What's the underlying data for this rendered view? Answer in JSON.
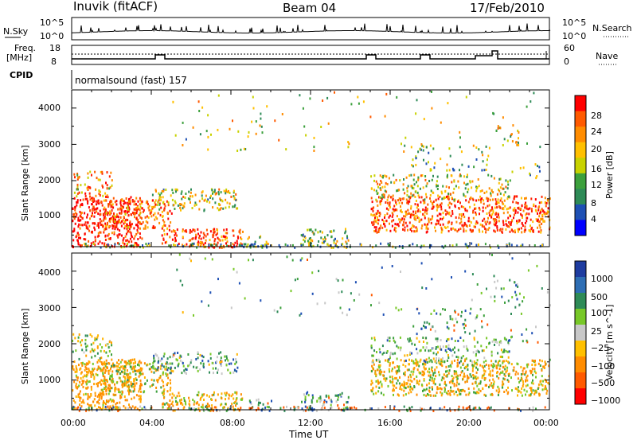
{
  "header": {
    "station": "Inuvik (fitACF)",
    "beam": "Beam 04",
    "date": "17/Feb/2010",
    "cpid_label": "CPID",
    "program": "normalsound (fast) 157"
  },
  "top_panels": {
    "nsky_label": "N.Sky",
    "nsky_ticks": [
      "10^5",
      "10^0"
    ],
    "nsearch_label": "N.Search",
    "nsearch_ticks": [
      "10^5",
      "10^0"
    ],
    "freq_label_line1": "Freq.",
    "freq_label_line2": "[MHz]",
    "freq_ticks": [
      "18",
      "8"
    ],
    "nave_label": "Nave",
    "nave_ticks": [
      "60",
      "0"
    ]
  },
  "chart_data": [
    {
      "type": "heatmap",
      "name": "power",
      "ylabel": "Slant Range [km]",
      "xlabel": "Time UT",
      "x_ticks": [
        "00:00",
        "04:00",
        "08:00",
        "12:00",
        "16:00",
        "20:00",
        "00:00"
      ],
      "xlim_hours": [
        0,
        24
      ],
      "y_ticks": [
        "1000",
        "2000",
        "3000",
        "4000"
      ],
      "ylim": [
        180,
        4500
      ],
      "colorbar_label": "Power [dB]",
      "colorbar_ticks": [
        "28",
        "24",
        "20",
        "16",
        "12",
        "8",
        "4"
      ],
      "colorbar_colors": [
        "#ff0000",
        "#ff5a00",
        "#ff8c00",
        "#ffc000",
        "#c8d200",
        "#3ca03c",
        "#2e8b57",
        "#1e50b4",
        "#0000ff"
      ]
    },
    {
      "type": "heatmap",
      "name": "velocity",
      "ylabel": "Slant Range [km]",
      "xlabel": "Time UT",
      "x_ticks": [
        "00:00",
        "04:00",
        "08:00",
        "12:00",
        "16:00",
        "20:00",
        "00:00"
      ],
      "xlim_hours": [
        0,
        24
      ],
      "y_ticks": [
        "1000",
        "2000",
        "3000",
        "4000"
      ],
      "ylim": [
        180,
        4500
      ],
      "colorbar_label": "Velocity [m s^-1]",
      "colorbar_ticks": [
        "1000",
        "500",
        "100",
        "25",
        "−25",
        "−100",
        "−500",
        "−1000"
      ],
      "colorbar_colors": [
        "#1e3ca0",
        "#2e6eb4",
        "#2e8b57",
        "#78c828",
        "#c8c8c8",
        "#ffc000",
        "#ff8c00",
        "#ff5a00",
        "#ff0000"
      ]
    }
  ]
}
